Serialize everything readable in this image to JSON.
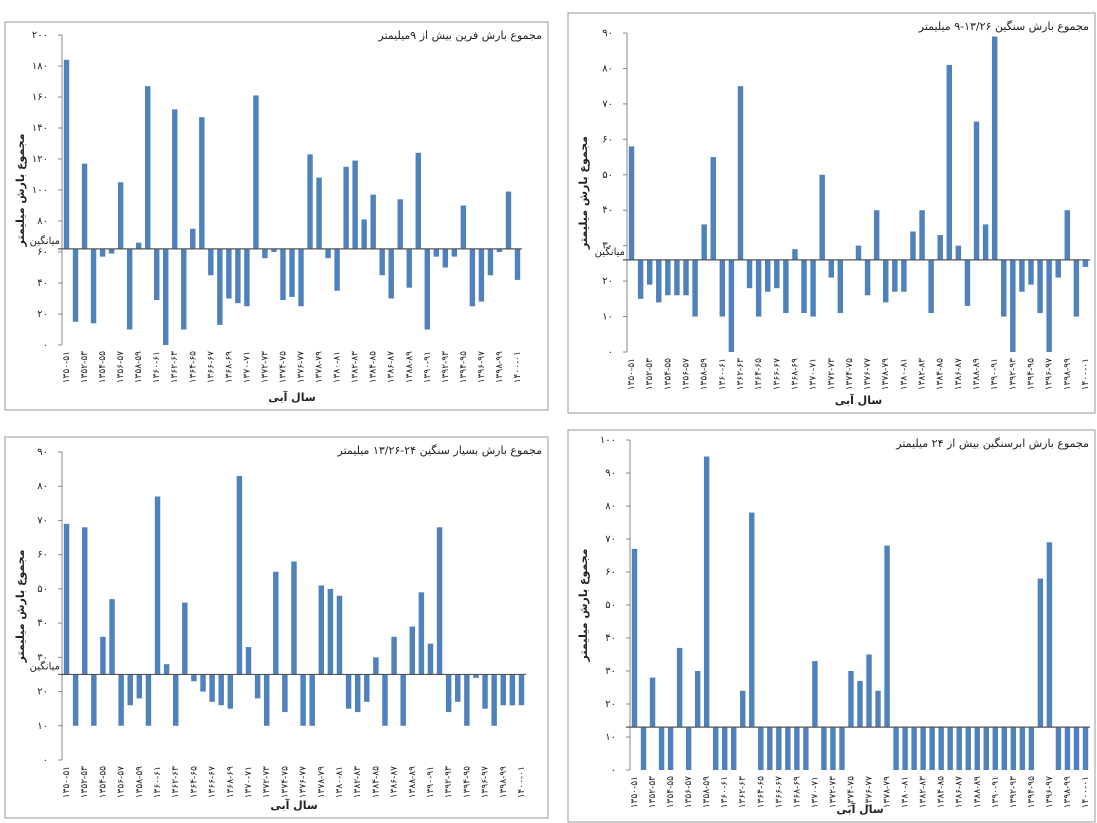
{
  "chart_data": [
    {
      "type": "bar",
      "title": "مجموع بارش فرین بیش از ۹میلیمتر",
      "x_label": "سال آبی",
      "y_label": "مجموع بارش میلیمتر",
      "mean": 62,
      "mean_label": "میانگین",
      "color": "#4f81bd",
      "categories": [
        "۱۳۵۰-۵۱",
        null,
        "۱۳۵۲-۵۳",
        null,
        "۱۳۵۴-۵۵",
        null,
        "۱۳۵۶-۵۷",
        null,
        "۱۳۵۸-۵۹",
        null,
        "۱۳۶۰-۶۱",
        null,
        "۱۳۶۲-۶۳",
        null,
        "۱۳۶۴-۶۵",
        null,
        "۱۳۶۶-۶۷",
        null,
        "۱۳۶۸-۶۹",
        null,
        "۱۳۷۰-۷۱",
        null,
        "۱۳۷۲-۷۳",
        null,
        "۱۳۷۴-۷۵",
        null,
        "۱۳۷۶-۷۷",
        null,
        "۱۳۷۸-۷۹",
        null,
        "۱۳۸۰-۸۱",
        null,
        "۱۳۸۲-۸۳",
        null,
        "۱۳۸۴-۸۵",
        null,
        "۱۳۸۶-۸۷",
        null,
        "۱۳۸۸-۸۹",
        null,
        "۱۳۹۰-۹۱",
        null,
        "۱۳۹۲-۹۳",
        null,
        "۱۳۹۴-۹۵",
        null,
        "۱۳۹۶-۹۷",
        null,
        "۱۳۹۸-۹۹",
        null,
        "۱۴۰۰-۰۱"
      ],
      "values": [
        184,
        15,
        117,
        14,
        57,
        59,
        105,
        10,
        66,
        167,
        29,
        0,
        152,
        10,
        75,
        147,
        45,
        13,
        30,
        27,
        25,
        161,
        56,
        60,
        29,
        31,
        25,
        123,
        108,
        56,
        35,
        115,
        119,
        81,
        97,
        45,
        30,
        94,
        37,
        124,
        10,
        57,
        50,
        57,
        90,
        25,
        28,
        45,
        60,
        99,
        42
      ],
      "ylim": [
        0,
        200
      ],
      "yticks": [
        {
          "value": 0,
          "label": "۰"
        },
        {
          "value": 20,
          "label": "۲۰"
        },
        {
          "value": 40,
          "label": "۴۰"
        },
        {
          "value": 60,
          "label": "۶۰"
        },
        {
          "value": 80,
          "label": "۸۰"
        },
        {
          "value": 100,
          "label": "۱۰۰"
        },
        {
          "value": 120,
          "label": "۱۲۰"
        },
        {
          "value": 140,
          "label": "۱۴۰"
        },
        {
          "value": 160,
          "label": "۱۶۰"
        },
        {
          "value": 180,
          "label": "۱۸۰"
        },
        {
          "value": 200,
          "label": "۲۰۰"
        }
      ]
    },
    {
      "type": "bar",
      "title": "مجموع بارش سنگین ۱۳/۲۶-۹ میلیمتر",
      "x_label": "سال آبی",
      "y_label": "مجموع بارش میلیمتر",
      "mean": 26,
      "mean_label": "میانگین",
      "color": "#4f81bd",
      "categories": [
        "۱۳۵۰-۵۱",
        null,
        "۱۳۵۲-۵۳",
        null,
        "۱۳۵۴-۵۵",
        null,
        "۱۳۵۶-۵۷",
        null,
        "۱۳۵۸-۵۹",
        null,
        "۱۳۶۰-۶۱",
        null,
        "۱۳۶۲-۶۳",
        null,
        "۱۳۶۴-۶۵",
        null,
        "۱۳۶۶-۶۷",
        null,
        "۱۳۶۸-۶۹",
        null,
        "۱۳۷۰-۷۱",
        null,
        "۱۳۷۲-۷۳",
        null,
        "۱۳۷۴-۷۵",
        null,
        "۱۳۷۶-۷۷",
        null,
        "۱۳۷۸-۷۹",
        null,
        "۱۳۸۰-۸۱",
        null,
        "۱۳۸۲-۸۳",
        null,
        "۱۳۸۴-۸۵",
        null,
        "۱۳۸۶-۸۷",
        null,
        "۱۳۸۸-۸۹",
        null,
        "۱۳۹۰-۹۱",
        null,
        "۱۳۹۲-۹۳",
        null,
        "۱۳۹۴-۹۵",
        null,
        "۱۳۹۶-۹۷",
        null,
        "۱۳۹۸-۹۹",
        null,
        "۱۴۰۰-۰۱"
      ],
      "values": [
        58,
        15,
        19,
        14,
        16,
        16,
        16,
        10,
        36,
        55,
        10,
        0,
        75,
        18,
        10,
        17,
        18,
        11,
        29,
        11,
        10,
        50,
        21,
        11,
        26,
        30,
        16,
        40,
        14,
        17,
        17,
        34,
        40,
        11,
        33,
        81,
        30,
        13,
        65,
        36,
        89,
        10,
        0,
        17,
        19,
        11,
        0,
        21,
        40,
        10,
        24
      ],
      "ylim": [
        0,
        90
      ],
      "yticks": [
        {
          "value": 0,
          "label": "۰"
        },
        {
          "value": 10,
          "label": "۱۰"
        },
        {
          "value": 20,
          "label": "۲۰"
        },
        {
          "value": 30,
          "label": "۳۰"
        },
        {
          "value": 40,
          "label": "۴۰"
        },
        {
          "value": 50,
          "label": "۵۰"
        },
        {
          "value": 60,
          "label": "۶۰"
        },
        {
          "value": 70,
          "label": "۷۰"
        },
        {
          "value": 80,
          "label": "۸۰"
        },
        {
          "value": 90,
          "label": "۹۰"
        }
      ]
    },
    {
      "type": "bar",
      "title": "مجموع بارش بسیار سنگین ۲۴-۱۳/۲۶ میلیمتر",
      "x_label": "سال آبی",
      "y_label": "مجموع بارش میلیمتر",
      "mean": 25,
      "mean_label": "میانگین",
      "color": "#4f81bd",
      "categories": [
        "۱۳۵۰-۵۱",
        null,
        "۱۳۵۲-۵۳",
        null,
        "۱۳۵۴-۵۵",
        null,
        "۱۳۵۶-۵۷",
        null,
        "۱۳۵۸-۵۹",
        null,
        "۱۳۶۰-۶۱",
        null,
        "۱۳۶۲-۶۳",
        null,
        "۱۳۶۴-۶۵",
        null,
        "۱۳۶۶-۶۷",
        null,
        "۱۳۶۸-۶۹",
        null,
        "۱۳۷۰-۷۱",
        null,
        "۱۳۷۲-۷۳",
        null,
        "۱۳۷۴-۷۵",
        null,
        "۱۳۷۶-۷۷",
        null,
        "۱۳۷۸-۷۹",
        null,
        "۱۳۸۰-۸۱",
        null,
        "۱۳۸۲-۸۳",
        null,
        "۱۳۸۴-۸۵",
        null,
        "۱۳۸۶-۸۷",
        null,
        "۱۳۸۸-۸۹",
        null,
        "۱۳۹۰-۹۱",
        null,
        "۱۳۹۲-۹۳",
        null,
        "۱۳۹۴-۹۵",
        null,
        "۱۳۹۶-۹۷",
        null,
        "۱۳۹۸-۹۹",
        null,
        "۱۴۰۰-۰۱"
      ],
      "values": [
        69,
        10,
        68,
        10,
        36,
        47,
        10,
        16,
        18,
        10,
        77,
        28,
        10,
        46,
        23,
        20,
        17,
        16,
        15,
        83,
        33,
        18,
        10,
        55,
        14,
        58,
        10,
        10,
        51,
        50,
        48,
        15,
        14,
        17,
        30,
        10,
        36,
        10,
        39,
        49,
        34,
        68,
        14,
        17,
        10,
        24,
        15,
        10,
        16,
        16,
        16
      ],
      "ylim": [
        0,
        90
      ],
      "yticks": [
        {
          "value": 0,
          "label": "۰"
        },
        {
          "value": 10,
          "label": "۱۰"
        },
        {
          "value": 20,
          "label": "۲۰"
        },
        {
          "value": 30,
          "label": "۳۰"
        },
        {
          "value": 40,
          "label": "۴۰"
        },
        {
          "value": 50,
          "label": "۵۰"
        },
        {
          "value": 60,
          "label": "۶۰"
        },
        {
          "value": 70,
          "label": "۷۰"
        },
        {
          "value": 80,
          "label": "۸۰"
        },
        {
          "value": 90,
          "label": "۹۰"
        }
      ]
    },
    {
      "type": "bar",
      "title": "مجموع بارش ابرسنگین بیش از ۲۴ میلیمتر",
      "x_label": "سال آبی",
      "y_label": "مجموع بارش میلیمتر",
      "mean": 13,
      "color": "#4f81bd",
      "categories": [
        "۱۳۵۰-۵۱",
        null,
        "۱۳۵۲-۵۳",
        null,
        "۱۳۵۴-۵۵",
        null,
        "۱۳۵۶-۵۷",
        null,
        "۱۳۵۸-۵۹",
        null,
        "۱۳۶۰-۶۱",
        null,
        "۱۳۶۲-۶۳",
        null,
        "۱۳۶۴-۶۵",
        null,
        "۱۳۶۶-۶۷",
        null,
        "۱۳۶۸-۶۹",
        null,
        "۱۳۷۰-۷۱",
        null,
        "۱۳۷۲-۷۳",
        null,
        "۱۳۷۴-۷۵",
        null,
        "۱۳۷۶-۷۷",
        null,
        "۱۳۷۸-۷۹",
        null,
        "۱۳۸۰-۸۱",
        null,
        "۱۳۸۲-۸۳",
        null,
        "۱۳۸۴-۸۵",
        null,
        "۱۳۸۶-۸۷",
        null,
        "۱۳۸۸-۸۹",
        null,
        "۱۳۹۰-۹۱",
        null,
        "۱۳۹۲-۹۳",
        null,
        "۱۳۹۴-۹۵",
        null,
        "۱۳۹۶-۹۷",
        null,
        "۱۳۹۸-۹۹",
        null,
        "۱۴۰۰-۰۱"
      ],
      "values": [
        67,
        0,
        28,
        0,
        0,
        37,
        0,
        30,
        95,
        0,
        0,
        0,
        24,
        78,
        0,
        0,
        0,
        0,
        0,
        0,
        33,
        0,
        0,
        0,
        30,
        27,
        35,
        24,
        68,
        0,
        0,
        0,
        0,
        0,
        0,
        0,
        0,
        0,
        0,
        0,
        0,
        0,
        0,
        0,
        0,
        58,
        69,
        0,
        0,
        0,
        0
      ],
      "ylim": [
        0,
        100
      ],
      "yticks": [
        {
          "value": 0,
          "label": "۰"
        },
        {
          "value": 10,
          "label": "۱۰"
        },
        {
          "value": 20,
          "label": "۲۰"
        },
        {
          "value": 30,
          "label": "۳۰"
        },
        {
          "value": 40,
          "label": "۴۰"
        },
        {
          "value": 50,
          "label": "۵۰"
        },
        {
          "value": 60,
          "label": "۶۰"
        },
        {
          "value": 70,
          "label": "۷۰"
        },
        {
          "value": 80,
          "label": "۸۰"
        },
        {
          "value": 90,
          "label": "۹۰"
        },
        {
          "value": 100,
          "label": "۱۰۰"
        }
      ]
    }
  ]
}
